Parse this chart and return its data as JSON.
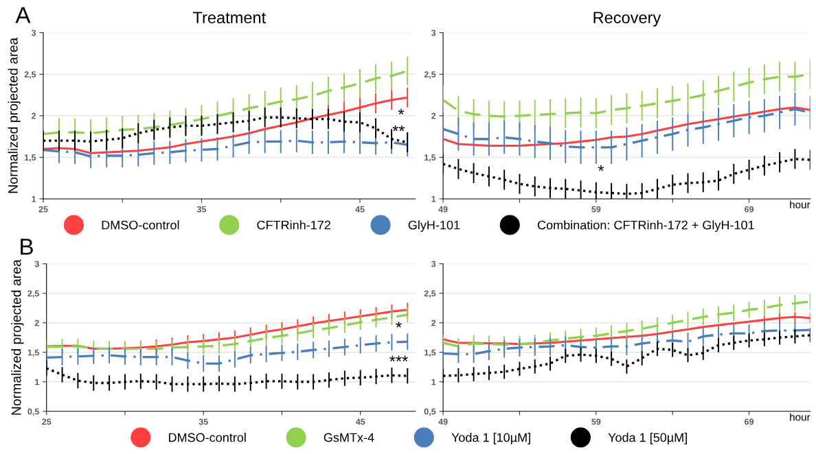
{
  "chart_data": [
    {
      "type": "line",
      "title": "Treatment",
      "ylabel": "Normalized projected area",
      "annotations": [
        "A",
        "*",
        "**"
      ],
      "grid": "y",
      "legend": "bottom",
      "x": [
        25,
        26,
        27,
        28,
        29,
        30,
        31,
        32,
        33,
        34,
        35,
        36,
        37,
        38,
        39,
        40,
        41,
        42,
        43,
        44,
        45,
        46,
        47,
        48
      ],
      "xlim": [
        25,
        48.5
      ],
      "xticks": [
        25,
        {
          "value": 30,
          "label": null
        },
        35,
        {
          "value": 40,
          "label": null
        },
        45
      ],
      "ylim": [
        1,
        3
      ],
      "yticks": [
        1,
        {
          "value": 1.5,
          "label": "1,5"
        },
        2,
        {
          "value": 2.5,
          "label": "2,5"
        },
        3
      ],
      "series": [
        {
          "name": "DMSO-control",
          "color": "#ff4040",
          "line_style": "solid",
          "values": [
            1.6,
            1.61,
            1.6,
            1.55,
            1.56,
            1.57,
            1.58,
            1.6,
            1.62,
            1.66,
            1.69,
            1.72,
            1.75,
            1.79,
            1.84,
            1.88,
            1.92,
            1.97,
            2.01,
            2.05,
            2.1,
            2.15,
            2.19,
            2.22
          ],
          "errors": [
            null,
            null,
            null,
            null,
            null,
            null,
            null,
            null,
            null,
            null,
            null,
            null,
            null,
            null,
            null,
            null,
            null,
            null,
            0.12,
            0.12,
            0.12,
            0.12,
            0.12,
            0.12
          ]
        },
        {
          "name": "CFTRinh-172",
          "color": "#92d050",
          "line_style": "dashed",
          "values": [
            1.78,
            1.8,
            1.8,
            1.79,
            1.81,
            1.83,
            1.84,
            1.86,
            1.89,
            1.92,
            1.96,
            2.0,
            2.04,
            2.09,
            2.13,
            2.17,
            2.2,
            2.24,
            2.3,
            2.34,
            2.39,
            2.45,
            2.48,
            2.54
          ],
          "errors": [
            0.17,
            0.17,
            0.17,
            0.17,
            0.17,
            0.17,
            0.17,
            0.17,
            0.17,
            0.17,
            0.17,
            0.17,
            0.17,
            0.17,
            0.17,
            0.17,
            0.17,
            0.17,
            0.17,
            0.17,
            0.17,
            0.17,
            0.17,
            0.17
          ]
        },
        {
          "name": "GlyH-101",
          "color": "#4a7ebb",
          "line_style": "dashdot",
          "values": [
            1.59,
            1.57,
            1.56,
            1.51,
            1.52,
            1.52,
            1.53,
            1.55,
            1.56,
            1.58,
            1.59,
            1.6,
            1.64,
            1.68,
            1.69,
            1.69,
            1.7,
            1.68,
            1.68,
            1.69,
            1.68,
            1.67,
            1.68,
            1.65
          ],
          "errors": [
            0.14,
            0.14,
            0.14,
            0.14,
            0.14,
            0.14,
            0.14,
            0.14,
            0.14,
            0.14,
            0.14,
            0.14,
            0.14,
            0.14,
            0.14,
            0.14,
            0.14,
            0.14,
            0.14,
            0.14,
            0.14,
            0.14,
            0.14,
            0.14
          ]
        },
        {
          "name": "Combination: CFTRinh-172 + GlyH-101",
          "color": "#000000",
          "line_style": "dotted",
          "values": [
            1.7,
            1.7,
            1.7,
            1.69,
            1.71,
            1.73,
            1.79,
            1.83,
            1.86,
            1.88,
            1.88,
            1.9,
            1.92,
            1.94,
            1.98,
            1.98,
            1.97,
            1.96,
            1.96,
            1.93,
            1.92,
            1.85,
            1.72,
            1.68
          ],
          "errors": [
            0.12,
            0.12,
            0.12,
            0.12,
            0.12,
            0.12,
            0.12,
            0.12,
            0.12,
            0.12,
            0.12,
            0.12,
            0.12,
            0.12,
            0.12,
            0.12,
            0.12,
            0.12,
            0.12,
            0.12,
            0.12,
            0.12,
            0.12,
            0.12
          ]
        }
      ]
    },
    {
      "type": "line",
      "title": "Recovery",
      "xlabel": "hour",
      "annotations": [
        "*"
      ],
      "grid": "y",
      "x": [
        49,
        50,
        51,
        52,
        53,
        54,
        55,
        56,
        57,
        58,
        59,
        60,
        61,
        62,
        63,
        64,
        65,
        66,
        67,
        68,
        69,
        70,
        71,
        72,
        73
      ],
      "xlim": [
        49,
        73
      ],
      "xticks": [
        49,
        {
          "value": 54,
          "label": null
        },
        59,
        {
          "value": 64,
          "label": null
        },
        69
      ],
      "ylim": [
        1,
        3
      ],
      "yticks": [
        1,
        {
          "value": 1.5,
          "label": "1,5"
        },
        2,
        {
          "value": 2.5,
          "label": "2,5"
        },
        3
      ],
      "series": [
        {
          "color": "#ff4040",
          "line_style": "solid",
          "values": [
            1.72,
            1.66,
            1.65,
            1.64,
            1.64,
            1.64,
            1.65,
            1.66,
            1.67,
            1.69,
            1.71,
            1.74,
            1.75,
            1.78,
            1.82,
            1.86,
            1.9,
            1.93,
            1.96,
            1.99,
            2.02,
            2.05,
            2.08,
            2.1,
            2.07
          ]
        },
        {
          "color": "#92d050",
          "line_style": "dashed",
          "values": [
            2.19,
            2.06,
            2.02,
            2.0,
            1.99,
            2.0,
            2.01,
            2.02,
            2.03,
            2.04,
            2.03,
            2.07,
            2.09,
            2.12,
            2.15,
            2.18,
            2.21,
            2.25,
            2.3,
            2.35,
            2.4,
            2.44,
            2.47,
            2.47,
            2.5
          ],
          "errors": [
            0.18,
            0.18,
            0.18,
            0.18,
            0.18,
            0.18,
            0.18,
            0.18,
            0.18,
            0.18,
            0.18,
            0.18,
            0.18,
            0.18,
            0.18,
            0.18,
            0.18,
            0.18,
            0.18,
            0.18,
            0.18,
            0.18,
            0.18,
            0.18,
            0.18
          ]
        },
        {
          "color": "#4a7ebb",
          "line_style": "dashdot",
          "values": [
            1.84,
            1.78,
            1.72,
            1.72,
            1.74,
            1.72,
            1.69,
            1.67,
            1.63,
            1.62,
            1.62,
            1.62,
            1.66,
            1.7,
            1.74,
            1.78,
            1.83,
            1.86,
            1.9,
            1.94,
            1.98,
            2.0,
            2.04,
            2.08,
            2.04
          ],
          "errors": [
            0.2,
            0.2,
            0.2,
            0.2,
            0.2,
            0.2,
            0.2,
            0.2,
            0.2,
            0.2,
            0.2,
            0.2,
            0.2,
            0.2,
            0.2,
            0.2,
            0.2,
            0.2,
            0.2,
            0.2,
            0.2,
            0.2,
            0.2,
            0.2,
            0.2
          ]
        },
        {
          "color": "#000000",
          "line_style": "dotted",
          "values": [
            1.42,
            1.36,
            1.31,
            1.27,
            1.23,
            1.18,
            1.15,
            1.13,
            1.12,
            1.1,
            1.08,
            1.07,
            1.06,
            1.07,
            1.12,
            1.17,
            1.19,
            1.2,
            1.22,
            1.3,
            1.35,
            1.4,
            1.44,
            1.48,
            1.47
          ],
          "errors": [
            0.12,
            0.12,
            0.12,
            0.12,
            0.12,
            0.12,
            0.12,
            0.12,
            0.12,
            0.12,
            0.12,
            0.12,
            0.12,
            0.12,
            0.12,
            0.12,
            0.12,
            0.12,
            0.12,
            0.12,
            0.12,
            0.12,
            0.12,
            0.12,
            0.12
          ]
        }
      ]
    },
    {
      "type": "line",
      "ylabel": "Normalized projected area",
      "annotations": [
        "B",
        "*",
        "***"
      ],
      "grid": "y",
      "legend": "bottom",
      "x": [
        25,
        26,
        27,
        28,
        29,
        30,
        31,
        32,
        33,
        34,
        35,
        36,
        37,
        38,
        39,
        40,
        41,
        42,
        43,
        44,
        45,
        46,
        47,
        48
      ],
      "xlim": [
        25,
        48.5
      ],
      "xticks": [
        25,
        {
          "value": 30,
          "label": null
        },
        35,
        {
          "value": 40,
          "label": null
        },
        45
      ],
      "ylim": [
        0.5,
        3
      ],
      "yticks": [
        {
          "value": 0.5,
          "label": "0,5"
        },
        1,
        {
          "value": 1.5,
          "label": "1,5"
        },
        2,
        {
          "value": 2.5,
          "label": "2,5"
        },
        3
      ],
      "series": [
        {
          "name": "DMSO-control",
          "color": "#ff4040",
          "line_style": "solid",
          "values": [
            1.6,
            1.61,
            1.61,
            1.56,
            1.56,
            1.57,
            1.58,
            1.6,
            1.63,
            1.67,
            1.69,
            1.72,
            1.75,
            1.8,
            1.85,
            1.89,
            1.94,
            1.99,
            2.03,
            2.07,
            2.11,
            2.15,
            2.19,
            2.22
          ],
          "errors": [
            null,
            null,
            null,
            null,
            null,
            null,
            0.12,
            0.12,
            0.12,
            0.12,
            0.12,
            0.12,
            0.12,
            0.12,
            0.12,
            0.12,
            0.12,
            0.12,
            0.12,
            0.12,
            0.12,
            0.12,
            0.12,
            0.12
          ]
        },
        {
          "name": "GsMTx-4",
          "color": "#92d050",
          "line_style": "dashed",
          "values": [
            1.59,
            1.6,
            1.6,
            1.57,
            1.56,
            1.56,
            1.56,
            1.56,
            1.58,
            1.59,
            1.6,
            1.61,
            1.64,
            1.69,
            1.74,
            1.78,
            1.82,
            1.87,
            1.91,
            1.96,
            2.01,
            2.05,
            2.09,
            2.14
          ],
          "errors": [
            0.13,
            0.13,
            0.13,
            0.13,
            0.13,
            0.13,
            0.13,
            0.13,
            0.13,
            0.13,
            0.13,
            0.13,
            0.13,
            0.13,
            0.13,
            0.13,
            0.13,
            0.13,
            0.13,
            0.13,
            0.13,
            0.13,
            0.13,
            0.13
          ]
        },
        {
          "name": "Yoda 1 [10µM]",
          "color": "#4a7ebb",
          "line_style": "dashdot",
          "values": [
            1.41,
            1.42,
            1.43,
            1.44,
            1.45,
            1.43,
            1.42,
            1.42,
            1.42,
            1.36,
            1.31,
            1.31,
            1.38,
            1.45,
            1.47,
            1.49,
            1.51,
            1.54,
            1.56,
            1.59,
            1.62,
            1.65,
            1.67,
            1.68
          ],
          "errors": [
            0.14,
            0.14,
            0.14,
            0.14,
            0.14,
            0.14,
            0.14,
            0.14,
            0.14,
            0.14,
            0.14,
            0.14,
            0.14,
            0.14,
            0.14,
            0.14,
            0.14,
            0.14,
            0.14,
            0.14,
            0.14,
            0.14,
            0.14,
            0.14
          ]
        },
        {
          "name": "Yoda 1 [50µM]",
          "color": "#000000",
          "line_style": "dotted",
          "values": [
            1.23,
            1.12,
            1.02,
            0.98,
            0.98,
            1.0,
            1.01,
            1.0,
            0.96,
            0.96,
            0.96,
            0.97,
            0.96,
            0.98,
            1.01,
            1.01,
            1.0,
            1.0,
            1.03,
            1.06,
            1.07,
            1.09,
            1.11,
            1.1
          ],
          "errors": [
            0.13,
            0.13,
            0.13,
            0.13,
            0.13,
            0.13,
            0.13,
            0.13,
            0.13,
            0.13,
            0.13,
            0.13,
            0.13,
            0.13,
            0.13,
            0.13,
            0.13,
            0.13,
            0.13,
            0.13,
            0.13,
            0.13,
            0.13,
            0.13
          ]
        }
      ]
    },
    {
      "type": "line",
      "xlabel": "hour",
      "grid": "y",
      "x": [
        49,
        50,
        51,
        52,
        53,
        54,
        55,
        56,
        57,
        58,
        59,
        60,
        61,
        62,
        63,
        64,
        65,
        66,
        67,
        68,
        69,
        70,
        71,
        72,
        73
      ],
      "xlim": [
        49,
        73
      ],
      "xticks": [
        49,
        {
          "value": 54,
          "label": null
        },
        59,
        {
          "value": 64,
          "label": null
        },
        69
      ],
      "ylim": [
        0.5,
        3
      ],
      "yticks": [
        {
          "value": 0.5,
          "label": "0,5"
        },
        1,
        {
          "value": 1.5,
          "label": "1,5"
        },
        2,
        {
          "value": 2.5,
          "label": "2,5"
        },
        3
      ],
      "series": [
        {
          "color": "#ff4040",
          "line_style": "solid",
          "values": [
            1.72,
            1.66,
            1.66,
            1.65,
            1.65,
            1.64,
            1.65,
            1.66,
            1.68,
            1.7,
            1.72,
            1.74,
            1.76,
            1.78,
            1.81,
            1.85,
            1.89,
            1.93,
            1.96,
            1.99,
            2.02,
            2.05,
            2.08,
            2.1,
            2.08
          ],
          "errors": [
            null,
            null,
            null,
            null,
            null,
            null,
            null,
            null,
            null,
            null,
            null,
            null,
            null,
            null,
            null,
            null,
            null,
            null,
            null,
            null,
            null,
            0.08,
            0.08,
            0.08,
            0.08
          ]
        },
        {
          "color": "#92d050",
          "line_style": "dashed",
          "values": [
            1.66,
            1.6,
            1.65,
            1.64,
            1.63,
            1.64,
            1.66,
            1.7,
            1.73,
            1.76,
            1.78,
            1.82,
            1.86,
            1.9,
            1.95,
            2.0,
            2.05,
            2.1,
            2.14,
            2.17,
            2.22,
            2.25,
            2.3,
            2.33,
            2.36
          ],
          "errors": [
            0.14,
            0.14,
            0.14,
            0.14,
            0.14,
            0.14,
            0.14,
            0.14,
            0.14,
            0.14,
            0.14,
            0.14,
            0.14,
            0.14,
            0.14,
            0.14,
            0.14,
            0.14,
            0.14,
            0.14,
            0.14,
            0.14,
            0.14,
            0.14,
            0.14
          ]
        },
        {
          "color": "#4a7ebb",
          "line_style": "dashdot",
          "values": [
            1.48,
            1.47,
            1.47,
            1.52,
            1.56,
            1.58,
            1.59,
            1.6,
            1.62,
            1.59,
            1.58,
            1.6,
            1.6,
            1.65,
            1.68,
            1.7,
            1.68,
            1.77,
            1.8,
            1.82,
            1.82,
            1.86,
            1.87,
            1.87,
            1.88
          ],
          "errors": [
            0.15,
            0.15,
            0.15,
            0.15,
            0.15,
            0.15,
            0.15,
            0.15,
            0.15,
            0.15,
            0.15,
            0.15,
            0.15,
            0.15,
            0.15,
            0.15,
            0.15,
            0.15,
            0.15,
            0.15,
            0.15,
            0.15,
            0.15,
            0.15,
            null
          ]
        },
        {
          "color": "#000000",
          "line_style": "dotted",
          "values": [
            1.1,
            1.11,
            1.13,
            1.15,
            1.17,
            1.22,
            1.26,
            1.31,
            1.44,
            1.46,
            1.44,
            1.39,
            1.26,
            1.4,
            1.56,
            1.54,
            1.45,
            1.49,
            1.62,
            1.66,
            1.7,
            1.72,
            1.75,
            1.77,
            1.79
          ],
          "errors": [
            0.12,
            0.12,
            0.12,
            0.12,
            0.12,
            0.12,
            0.12,
            0.12,
            0.12,
            0.12,
            0.12,
            0.12,
            0.12,
            0.12,
            0.12,
            0.12,
            0.12,
            0.12,
            0.12,
            0.12,
            0.12,
            0.12,
            0.12,
            0.12,
            0.12
          ]
        }
      ]
    }
  ]
}
